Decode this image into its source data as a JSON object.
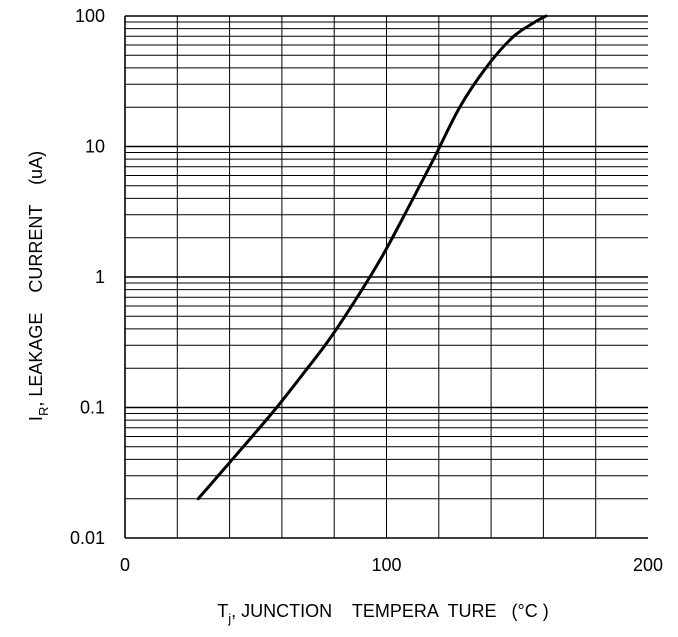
{
  "chart_data": {
    "type": "line",
    "title": "",
    "xlabel": {
      "main": "T",
      "sub": "j",
      "rest": ", JUNCTION    TEMPERA  TURE   (°C )"
    },
    "ylabel": {
      "main": "I",
      "sub": "R",
      "rest": ", LEAKAGE    CURRENT    (uA)"
    },
    "x_scale": "linear",
    "y_scale": "log",
    "xlim": [
      0,
      200
    ],
    "ylim": [
      0.01,
      100
    ],
    "x_ticks": [
      {
        "value": 0,
        "label": "0"
      },
      {
        "value": 100,
        "label": "100"
      },
      {
        "value": 200,
        "label": "200"
      }
    ],
    "y_ticks": [
      {
        "value": 0.01,
        "label": "0.01"
      },
      {
        "value": 0.1,
        "label": "0.1"
      },
      {
        "value": 1,
        "label": "1"
      },
      {
        "value": 10,
        "label": "10"
      },
      {
        "value": 100,
        "label": "100"
      }
    ],
    "grid": true,
    "series": [
      {
        "x": [
          28,
          38,
          48,
          58,
          68,
          78,
          88,
          98,
          108,
          118,
          128,
          138,
          148,
          156,
          161
        ],
        "y": [
          0.02,
          0.034,
          0.058,
          0.1,
          0.18,
          0.33,
          0.66,
          1.4,
          3.3,
          8.0,
          20,
          40,
          68,
          88,
          100
        ]
      }
    ]
  }
}
